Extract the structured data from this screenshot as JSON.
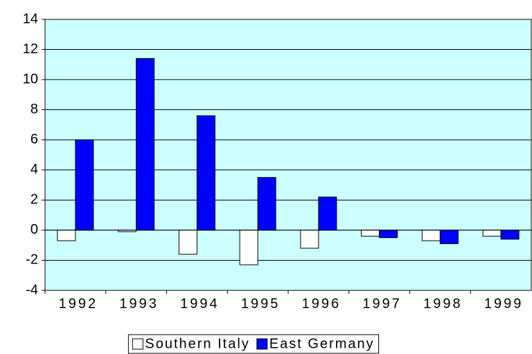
{
  "chart_data": {
    "type": "bar",
    "categories": [
      "1992",
      "1993",
      "1994",
      "1995",
      "1996",
      "1997",
      "1998",
      "1999"
    ],
    "series": [
      {
        "name": "Southern Italy",
        "color": "#ffffff",
        "values": [
          -0.7,
          -0.1,
          -1.6,
          -2.3,
          -1.2,
          -0.4,
          -0.7,
          -0.4
        ]
      },
      {
        "name": "East Germany",
        "color": "#0000ff",
        "values": [
          6.0,
          11.4,
          7.6,
          3.5,
          2.2,
          -0.5,
          -0.9,
          -0.6
        ]
      }
    ],
    "ylim": [
      -4,
      14
    ],
    "yticks": [
      -4,
      -2,
      0,
      2,
      4,
      6,
      8,
      10,
      12,
      14
    ],
    "grid": true,
    "background": "#ccffff",
    "legend": "bottom"
  }
}
